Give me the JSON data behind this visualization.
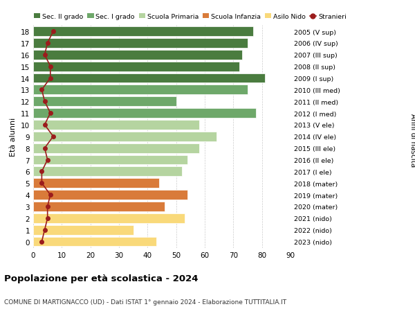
{
  "ages": [
    18,
    17,
    16,
    15,
    14,
    13,
    12,
    11,
    10,
    9,
    8,
    7,
    6,
    5,
    4,
    3,
    2,
    1,
    0
  ],
  "labels_right": [
    "2005 (V sup)",
    "2006 (IV sup)",
    "2007 (III sup)",
    "2008 (II sup)",
    "2009 (I sup)",
    "2010 (III med)",
    "2011 (II med)",
    "2012 (I med)",
    "2013 (V ele)",
    "2014 (IV ele)",
    "2015 (III ele)",
    "2016 (II ele)",
    "2017 (I ele)",
    "2018 (mater)",
    "2019 (mater)",
    "2020 (mater)",
    "2021 (nido)",
    "2022 (nido)",
    "2023 (nido)"
  ],
  "bar_values": [
    77,
    75,
    73,
    72,
    81,
    75,
    50,
    78,
    58,
    64,
    58,
    54,
    52,
    44,
    54,
    46,
    53,
    35,
    43
  ],
  "bar_colors": [
    "#4a7c3f",
    "#4a7c3f",
    "#4a7c3f",
    "#4a7c3f",
    "#4a7c3f",
    "#6ea86a",
    "#6ea86a",
    "#6ea86a",
    "#b5d4a0",
    "#b5d4a0",
    "#b5d4a0",
    "#b5d4a0",
    "#b5d4a0",
    "#d97b3a",
    "#d97b3a",
    "#d97b3a",
    "#f9d97a",
    "#f9d97a",
    "#f9d97a"
  ],
  "stranieri_values": [
    7,
    5,
    4,
    6,
    6,
    3,
    4,
    6,
    4,
    7,
    4,
    5,
    3,
    3,
    6,
    5,
    5,
    4,
    3
  ],
  "legend_labels": [
    "Sec. II grado",
    "Sec. I grado",
    "Scuola Primaria",
    "Scuola Infanzia",
    "Asilo Nido",
    "Stranieri"
  ],
  "legend_colors": [
    "#4a7c3f",
    "#6ea86a",
    "#b5d4a0",
    "#d97b3a",
    "#f9d97a",
    "#9b1c1c"
  ],
  "ylabel": "Età alunni",
  "ylabel_right": "Anni di nascita",
  "title": "Popolazione per età scolastica - 2024",
  "subtitle": "COMUNE DI MARTIGNACCO (UD) - Dati ISTAT 1° gennaio 2024 - Elaborazione TUTTITALIA.IT",
  "xlim": [
    0,
    90
  ],
  "xticks": [
    0,
    10,
    20,
    30,
    40,
    50,
    60,
    70,
    80,
    90
  ],
  "bg_color": "#ffffff",
  "grid_color": "#cccccc"
}
